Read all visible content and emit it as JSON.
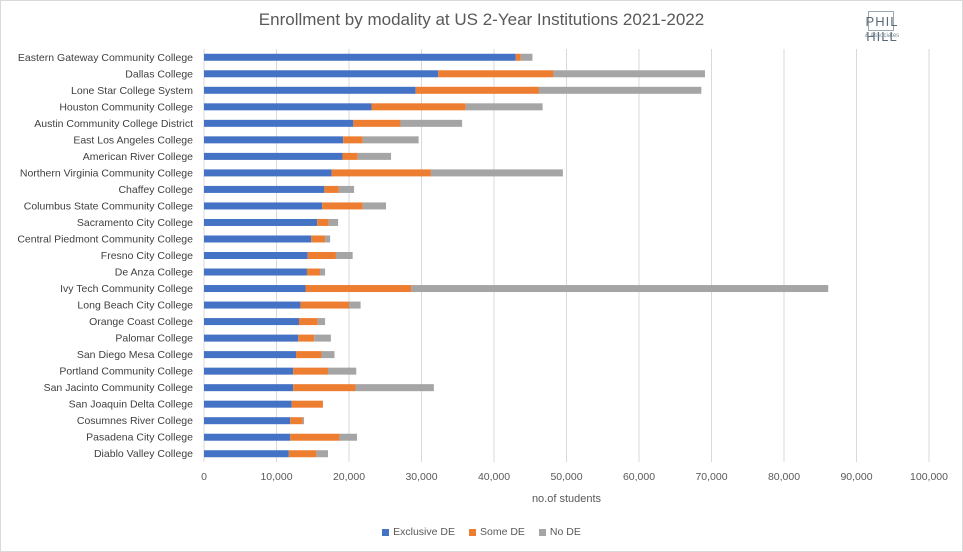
{
  "chart_data": {
    "type": "bar",
    "orientation": "horizontal",
    "stacked": true,
    "title": "Enrollment by modality at US 2-Year Institutions 2021-2022",
    "xlabel": "no.of students",
    "ylabel": "",
    "xlim": [
      0,
      100000
    ],
    "xticks": [
      "0",
      "10,000",
      "20,000",
      "30,000",
      "40,000",
      "50,000",
      "60,000",
      "70,000",
      "80,000",
      "90,000",
      "100,000"
    ],
    "grid": "vertical",
    "legend_position": "bottom",
    "categories": [
      "Eastern Gateway Community College",
      "Dallas College",
      "Lone Star College System",
      "Houston Community College",
      "Austin Community College District",
      "East Los Angeles College",
      "American River College",
      "Northern Virginia Community College",
      "Chaffey College",
      "Columbus State Community College",
      "Sacramento City College",
      "Central Piedmont Community College",
      "Fresno City College",
      "De Anza College",
      "Ivy Tech Community College",
      "Long Beach City College",
      "Orange Coast College",
      "Palomar College",
      "San Diego Mesa College",
      "Portland Community College",
      "San Jacinto Community College",
      "San Joaquin Delta College",
      "Cosumnes River College",
      "Pasadena City College",
      "Diablo Valley College"
    ],
    "series": [
      {
        "name": "Exclusive DE",
        "color": "#4472c4",
        "values": [
          43000,
          32300,
          29200,
          23100,
          20600,
          19200,
          19100,
          17600,
          16600,
          16300,
          15600,
          14800,
          14300,
          14200,
          14000,
          13300,
          13100,
          13000,
          12700,
          12300,
          12300,
          12100,
          11900,
          11900,
          11700
        ]
      },
      {
        "name": "Some DE",
        "color": "#ed7d31",
        "values": [
          700,
          15900,
          17000,
          13000,
          6500,
          2700,
          2100,
          13700,
          2000,
          5600,
          1600,
          1900,
          3900,
          1800,
          14600,
          6700,
          2600,
          2200,
          3500,
          4800,
          8600,
          4300,
          1700,
          6800,
          3800
        ]
      },
      {
        "name": "No DE",
        "color": "#a5a5a5",
        "values": [
          1600,
          20900,
          22400,
          10600,
          8500,
          7700,
          4600,
          18200,
          2100,
          3200,
          1300,
          700,
          2300,
          700,
          57500,
          1600,
          1000,
          2300,
          1800,
          3900,
          10800,
          0,
          200,
          2400,
          1600
        ]
      }
    ]
  },
  "logo": {
    "main": "PHIL HILL",
    "sub": "& Associates"
  }
}
